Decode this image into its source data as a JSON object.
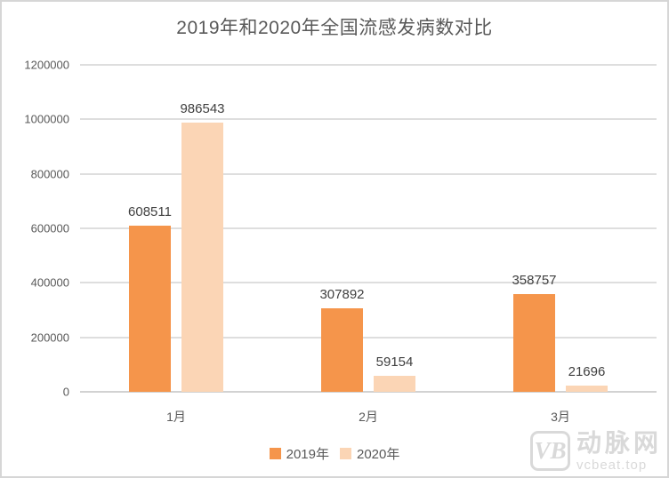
{
  "title": "2019年和2020年全国流感发病数对比",
  "chart_data": {
    "type": "bar",
    "title": "2019年和2020年全国流感发病数对比",
    "categories": [
      "1月",
      "2月",
      "3月"
    ],
    "series": [
      {
        "name": "2019年",
        "color": "#F5954B",
        "values": [
          608511,
          307892,
          358757
        ]
      },
      {
        "name": "2020年",
        "color": "#FBD5B5",
        "values": [
          986543,
          59154,
          21696
        ]
      }
    ],
    "xlabel": "",
    "ylabel": "",
    "ylim": [
      0,
      1200000
    ],
    "yticks": [
      0,
      200000,
      400000,
      600000,
      800000,
      1000000,
      1200000
    ],
    "grid": true,
    "data_labels": true,
    "legend_position": "bottom"
  },
  "watermark": {
    "logo_text": "VB",
    "name": "动脉网",
    "url": "vcbeat.top"
  },
  "colors": {
    "series_2019": "#F5954B",
    "series_2020": "#FBD5B5",
    "title_text": "#595959",
    "axis_text": "#595959",
    "data_label_text": "#404040",
    "gridline": "#DEDEDE",
    "frame_border": "#D6D6D6",
    "watermark": "#D9D9D9",
    "background": "#FFFFFF"
  }
}
